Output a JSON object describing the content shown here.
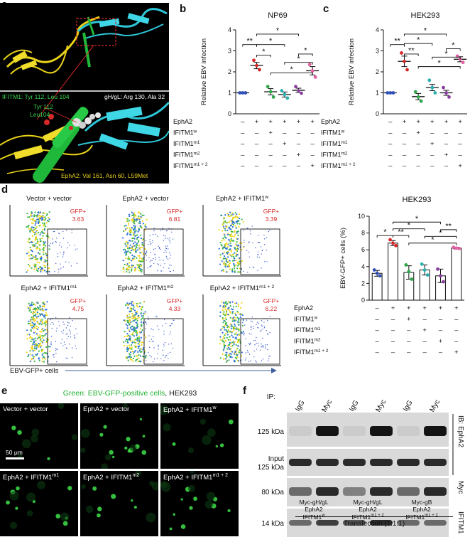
{
  "panels": {
    "a": "a",
    "b": "b",
    "c": "c",
    "d": "d",
    "e": "e",
    "f": "f"
  },
  "panel_a": {
    "ifitm1_label": "IFITM1: Tyr 112, Leu 104",
    "ghgl_label": "gH/gL: Arg 130, Ala 32",
    "tyr_label": "Tyr 112",
    "leu_label": "Leu104",
    "epha2_label": "EphA2: Val 161, Asn 60, L59Met",
    "colors": {
      "ifitm1": "#1fb83a",
      "ghgl": "#2ec6d8",
      "epha2": "#e8d21a",
      "highlight": "#d62828"
    }
  },
  "chart_data": [
    {
      "type": "scatter",
      "title": "NP69",
      "ylabel": "Relative EBV infection",
      "ylim": [
        0,
        4
      ],
      "yticks": [
        "0",
        "1",
        "2",
        "3",
        "4"
      ],
      "conditions": [
        {
          "name": "EphA2",
          "signs": [
            "–",
            "+",
            "+",
            "+",
            "+",
            "+"
          ]
        },
        {
          "name": "IFITM1",
          "sup": "w",
          "signs": [
            "–",
            "–",
            "+",
            "–",
            "–",
            "–"
          ]
        },
        {
          "name": "IFITM1",
          "sup": "m1",
          "signs": [
            "–",
            "–",
            "–",
            "+",
            "–",
            "–"
          ]
        },
        {
          "name": "IFITM1",
          "sup": "m2",
          "signs": [
            "–",
            "–",
            "–",
            "–",
            "+",
            "–"
          ]
        },
        {
          "name": "IFITM1",
          "sup": "m1 + 2",
          "signs": [
            "–",
            "–",
            "–",
            "–",
            "–",
            "+"
          ]
        }
      ],
      "groups": [
        {
          "mean": 1.0,
          "sem": 0.0,
          "color": "#3050b8",
          "points": [
            1.0,
            1.0,
            1.0
          ]
        },
        {
          "mean": 2.3,
          "sem": 0.15,
          "color": "#d62828",
          "points": [
            2.55,
            2.3,
            2.1
          ]
        },
        {
          "mean": 1.05,
          "sem": 0.15,
          "color": "#2fa84a",
          "points": [
            1.3,
            1.05,
            0.8
          ]
        },
        {
          "mean": 0.92,
          "sem": 0.12,
          "color": "#2ab0b0",
          "points": [
            1.1,
            0.92,
            0.75
          ]
        },
        {
          "mean": 1.12,
          "sem": 0.1,
          "color": "#8a3fa0",
          "points": [
            1.3,
            1.1,
            0.98
          ]
        },
        {
          "mean": 2.05,
          "sem": 0.2,
          "color": "#e060a0",
          "points": [
            2.35,
            2.05,
            1.75
          ]
        }
      ],
      "brackets": [
        {
          "from": 0,
          "to": 1,
          "label": "**",
          "level": 3.3
        },
        {
          "from": 1,
          "to": 2,
          "label": "*",
          "level": 2.8
        },
        {
          "from": 1,
          "to": 3,
          "label": "*",
          "level": 3.3
        },
        {
          "from": 1,
          "to": 4,
          "label": "*",
          "level": 3.8
        },
        {
          "from": 2,
          "to": 5,
          "label": "*",
          "level": 1.95
        },
        {
          "from": 3,
          "to": 5,
          "label": "*",
          "level": 2.45
        },
        {
          "from": 4,
          "to": 5,
          "label": "*",
          "level": 2.85
        }
      ]
    },
    {
      "type": "scatter",
      "title": "HEK293",
      "ylabel": "Relative EBV infection",
      "ylim": [
        0,
        4
      ],
      "yticks": [
        "0",
        "1",
        "2",
        "3",
        "4"
      ],
      "conditions": [
        {
          "name": "EphA2",
          "signs": [
            "–",
            "+",
            "+",
            "+",
            "+",
            "+"
          ]
        },
        {
          "name": "IFITM1",
          "sup": "w",
          "signs": [
            "–",
            "–",
            "+",
            "–",
            "–",
            "–"
          ]
        },
        {
          "name": "IFITM1",
          "sup": "m1",
          "signs": [
            "–",
            "–",
            "–",
            "+",
            "–",
            "–"
          ]
        },
        {
          "name": "IFITM1",
          "sup": "m2",
          "signs": [
            "–",
            "–",
            "–",
            "–",
            "+",
            "–"
          ]
        },
        {
          "name": "IFITM1",
          "sup": "m1 + 2",
          "signs": [
            "–",
            "–",
            "–",
            "–",
            "–",
            "+"
          ]
        }
      ],
      "groups": [
        {
          "mean": 1.0,
          "sem": 0.0,
          "color": "#3050b8",
          "points": [
            1.0,
            1.0,
            1.0
          ]
        },
        {
          "mean": 2.5,
          "sem": 0.25,
          "color": "#d62828",
          "points": [
            2.9,
            2.5,
            2.1
          ]
        },
        {
          "mean": 0.82,
          "sem": 0.15,
          "color": "#2fa84a",
          "points": [
            1.05,
            0.8,
            0.6
          ]
        },
        {
          "mean": 1.25,
          "sem": 0.15,
          "color": "#2ab0b0",
          "points": [
            1.6,
            1.25,
            1.0
          ]
        },
        {
          "mean": 1.0,
          "sem": 0.12,
          "color": "#8a3fa0",
          "points": [
            1.25,
            1.0,
            0.8
          ]
        },
        {
          "mean": 2.6,
          "sem": 0.12,
          "color": "#e060a0",
          "points": [
            2.75,
            2.6,
            2.45
          ]
        }
      ],
      "brackets": [
        {
          "from": 0,
          "to": 1,
          "label": "**",
          "level": 3.3
        },
        {
          "from": 1,
          "to": 2,
          "label": "**",
          "level": 2.85
        },
        {
          "from": 1,
          "to": 3,
          "label": "*",
          "level": 3.35
        },
        {
          "from": 1,
          "to": 4,
          "label": "*",
          "level": 3.8
        },
        {
          "from": 2,
          "to": 5,
          "label": "*",
          "level": 2.25
        },
        {
          "from": 3,
          "to": 5,
          "label": "*",
          "level": 2.7
        },
        {
          "from": 4,
          "to": 5,
          "label": "*",
          "level": 3.1
        }
      ]
    },
    {
      "type": "bar",
      "title": "HEK293",
      "ylabel": "EBV-GFP+ cells (%)",
      "ylim": [
        0,
        10
      ],
      "yticks": [
        "0",
        "2",
        "4",
        "6",
        "8",
        "10"
      ],
      "conditions": [
        {
          "name": "EphA2",
          "signs": [
            "–",
            "+",
            "+",
            "+",
            "+",
            "+"
          ]
        },
        {
          "name": "IFITM1",
          "sup": "w",
          "signs": [
            "–",
            "–",
            "+",
            "–",
            "–",
            "–"
          ]
        },
        {
          "name": "IFITM1",
          "sup": "m1",
          "signs": [
            "–",
            "–",
            "–",
            "+",
            "–",
            "–"
          ]
        },
        {
          "name": "IFITM1",
          "sup": "m2",
          "signs": [
            "–",
            "–",
            "–",
            "–",
            "+",
            "–"
          ]
        },
        {
          "name": "IFITM1",
          "sup": "m1 + 2",
          "signs": [
            "–",
            "–",
            "–",
            "–",
            "–",
            "+"
          ]
        }
      ],
      "groups": [
        {
          "mean": 3.2,
          "sem": 0.35,
          "color": "#3050b8",
          "points": [
            3.6,
            3.2,
            2.9
          ]
        },
        {
          "mean": 6.8,
          "sem": 0.3,
          "color": "#d62828",
          "points": [
            7.2,
            6.8,
            6.5
          ]
        },
        {
          "mean": 3.3,
          "sem": 0.8,
          "color": "#2fa84a",
          "points": [
            4.2,
            3.4,
            2.5
          ]
        },
        {
          "mean": 3.6,
          "sem": 0.6,
          "color": "#2ab0b0",
          "points": [
            4.3,
            3.6,
            3.0
          ]
        },
        {
          "mean": 2.9,
          "sem": 0.8,
          "color": "#8a3fa0",
          "points": [
            3.7,
            2.9,
            2.2
          ]
        },
        {
          "mean": 6.2,
          "sem": 0.1,
          "color": "#e060a0",
          "points": [
            6.3,
            6.2,
            6.15
          ]
        }
      ],
      "brackets": [
        {
          "from": 0,
          "to": 1,
          "label": "*",
          "level": 7.7
        },
        {
          "from": 1,
          "to": 2,
          "label": "**",
          "level": 7.7
        },
        {
          "from": 1,
          "to": 3,
          "label": "*",
          "level": 8.5
        },
        {
          "from": 1,
          "to": 4,
          "label": "*",
          "level": 9.3
        },
        {
          "from": 2,
          "to": 5,
          "label": "*",
          "level": 6.8
        },
        {
          "from": 3,
          "to": 5,
          "label": "*",
          "level": 7.6
        },
        {
          "from": 4,
          "to": 5,
          "label": "**",
          "level": 8.4
        }
      ]
    }
  ],
  "flow": {
    "xlabel": "EBV-GFP+  cells",
    "gate_label": "GFP+",
    "plots": [
      {
        "title": "Vector + vector",
        "value": "3.63",
        "density": 0.3
      },
      {
        "title": "EphA2 + vector",
        "value": "6.81",
        "density": 0.55
      },
      {
        "title": "EphA2 + IFITM1",
        "sup": "w",
        "value": "3.39",
        "density": 0.28
      },
      {
        "title": "EphA2 + IFITM1",
        "sup": "m1",
        "value": "4.75",
        "density": 0.4
      },
      {
        "title": "EphA2 + IFITM1",
        "sup": "m2",
        "value": "4.33",
        "density": 0.37
      },
      {
        "title": "EphA2 + IFITM1",
        "sup": "m1 + 2",
        "value": "6.22",
        "density": 0.52
      }
    ]
  },
  "panel_e": {
    "title_green": "Green: EBV-GFP-positive cells",
    "title_rest": ", HEK293",
    "scale_bar": "50 μm",
    "images": [
      {
        "label": "Vector + vector",
        "spots": 3
      },
      {
        "label": "EphA2 + vector",
        "spots": 12
      },
      {
        "label": "EphA2 + IFITM1",
        "sup": "w",
        "spots": 4
      },
      {
        "label": "EphA2 + IFITM1",
        "sup": "m1",
        "spots": 9
      },
      {
        "label": "EphA2 + IFITM1",
        "sup": "m2",
        "spots": 6
      },
      {
        "label": "EphA2 + IFITM1",
        "sup": "m1 + 2",
        "spots": 10
      }
    ]
  },
  "panel_f": {
    "ip_label": "IP:",
    "lanes": [
      "IgG",
      "Myc",
      "IgG",
      "Myc",
      "IgG",
      "Myc"
    ],
    "rows": [
      {
        "left": "125 kDa",
        "right": "IB: EphA2",
        "right_group": "ephA2"
      },
      {
        "left": "Input\n125 kDa",
        "right": "",
        "right_group": "ephA2"
      },
      {
        "left": "80 kDa",
        "right": "Myc"
      },
      {
        "left": "14 kDa",
        "right": "IFITM1"
      }
    ],
    "transfections": [
      {
        "l1": "Myc-gH/gL",
        "l2": "EphA2",
        "l3": "IFITM1",
        "sup": "w"
      },
      {
        "l1": "Myc-gH/gL",
        "l2": "EphA2",
        "l3": "IFITM1",
        "sup": "m1 + 2"
      },
      {
        "l1": "Myc-gB",
        "l2": "EphA2",
        "l3": "IFITM1",
        "sup": "m1 + 2"
      }
    ],
    "footer": "Transfection (1:1:1)"
  }
}
